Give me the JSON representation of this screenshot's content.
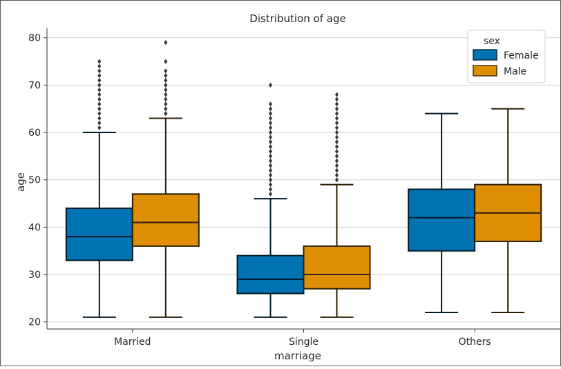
{
  "chart_data": {
    "type": "box",
    "title": "Distribution of age",
    "xlabel": "marriage",
    "ylabel": "age",
    "categories": [
      "Married",
      "Single",
      "Others"
    ],
    "ylim": [
      18.5,
      82
    ],
    "yticks": [
      20,
      30,
      40,
      50,
      60,
      70,
      80
    ],
    "grid": true,
    "legend": {
      "title": "sex",
      "position": "top-right"
    },
    "series": [
      {
        "name": "Female",
        "color": "#0173b2",
        "boxes": [
          {
            "whislo": 21,
            "q1": 33,
            "med": 38,
            "q3": 44,
            "whishi": 60,
            "fliers": [
              61,
              62,
              63,
              64,
              65,
              66,
              67,
              68,
              69,
              70,
              71,
              72,
              73,
              74,
              75
            ]
          },
          {
            "whislo": 21,
            "q1": 26,
            "med": 29,
            "q3": 34,
            "whishi": 46,
            "fliers": [
              47,
              48,
              49,
              50,
              51,
              52,
              53,
              54,
              55,
              56,
              57,
              58,
              59,
              60,
              61,
              62,
              63,
              64,
              65,
              66,
              70
            ]
          },
          {
            "whislo": 22,
            "q1": 35,
            "med": 42,
            "q3": 48,
            "whishi": 64,
            "fliers": []
          }
        ]
      },
      {
        "name": "Male",
        "color": "#de8f05",
        "boxes": [
          {
            "whislo": 21,
            "q1": 36,
            "med": 41,
            "q3": 47,
            "whishi": 63,
            "fliers": [
              64,
              65,
              66,
              67,
              68,
              69,
              70,
              71,
              72,
              73,
              75,
              79
            ]
          },
          {
            "whislo": 21,
            "q1": 27,
            "med": 30,
            "q3": 36,
            "whishi": 49,
            "fliers": [
              50,
              51,
              52,
              53,
              54,
              55,
              56,
              57,
              58,
              59,
              60,
              61,
              62,
              63,
              64,
              65,
              66,
              67,
              68
            ]
          },
          {
            "whislo": 22,
            "q1": 37,
            "med": 43,
            "q3": 49,
            "whishi": 65,
            "fliers": []
          }
        ]
      }
    ]
  }
}
